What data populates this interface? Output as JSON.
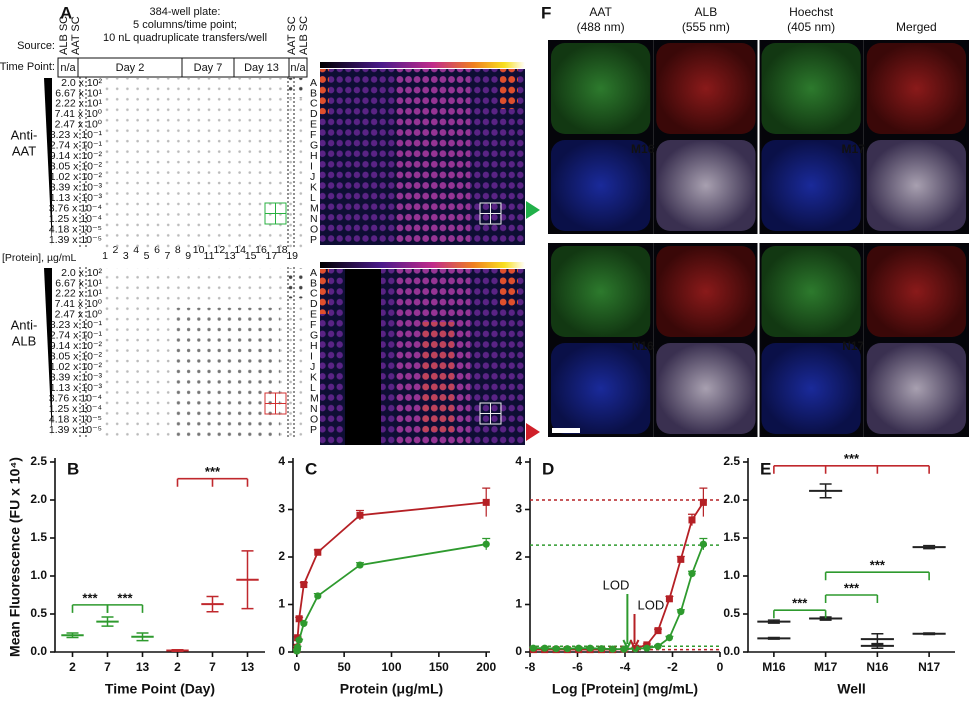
{
  "panel_a": {
    "label": "A",
    "plate_title": [
      "384-well plate:",
      "5 columns/time point;",
      "10 nL quadruplicate transfers/well"
    ],
    "source_label": "Source:",
    "source_left": [
      "ALB SC",
      "AAT SC"
    ],
    "source_right": [
      "AAT SC",
      "ALB SC"
    ],
    "time_label": "Time Point:",
    "time_points": [
      "n/a",
      "Day 2",
      "Day 7",
      "Day 13",
      "n/a"
    ],
    "protein_label": "[Protein], µg/mL",
    "columns": [
      "1",
      "2",
      "3",
      "4",
      "5",
      "6",
      "7",
      "8",
      "9",
      "10",
      "11",
      "12",
      "13",
      "14",
      "15",
      "16",
      "17",
      "18",
      "19"
    ],
    "concentrations": [
      "2.0 x 10²",
      "6.67 x 10¹",
      "2.22 x 10¹",
      "7.41 x 10⁰",
      "2.47 x 10⁰",
      "8.23 x 10⁻¹",
      "2.74 x 10⁻¹",
      "9.14 x 10⁻²",
      "3.05 x 10⁻²",
      "1.02 x 10⁻²",
      "3.39 x 10⁻³",
      "1.13 x 10⁻³",
      "3.76 x 10⁻⁴",
      "1.25 x 10⁻⁴",
      "4.18 x 10⁻⁵",
      "1.39 x 10⁻⁵"
    ],
    "rows": [
      "A",
      "B",
      "C",
      "D",
      "E",
      "F",
      "G",
      "H",
      "I",
      "J",
      "K",
      "L",
      "M",
      "N",
      "O",
      "P"
    ],
    "antibodies": [
      [
        "Anti-",
        "AAT"
      ],
      [
        "Anti-",
        "ALB"
      ]
    ]
  },
  "panel_f": {
    "label": "F",
    "channels": [
      [
        "AAT",
        "(488 nm)"
      ],
      [
        "ALB",
        "(555 nm)"
      ],
      [
        "Hoechst",
        "(405 nm)"
      ],
      [
        "Merged"
      ]
    ],
    "wells": [
      "M16",
      "M17",
      "N16",
      "N17"
    ]
  },
  "chart_data": [
    {
      "label": "B",
      "type": "dot",
      "ylabel": "Mean Fluorescence (FU x 10⁴)",
      "xlabel": "Time Point (Day)",
      "categories": [
        "2",
        "7",
        "13",
        "2",
        "7",
        "13"
      ],
      "series": [
        {
          "color": "#2e9a2e",
          "values": [
            0.22,
            0.4,
            0.2,
            null,
            null,
            null
          ],
          "errors": [
            0.03,
            0.06,
            0.05,
            null,
            null,
            null
          ]
        },
        {
          "color": "#c0282d",
          "values": [
            null,
            null,
            null,
            0.02,
            0.63,
            0.95
          ],
          "errors": [
            null,
            null,
            null,
            0.01,
            0.1,
            0.38
          ]
        }
      ],
      "ylim": [
        0,
        2.5
      ],
      "yticks": [
        {
          "value": 0,
          "label": "0.0"
        },
        {
          "value": 0.5,
          "label": "0.5"
        },
        {
          "value": 1,
          "label": "1.0"
        },
        {
          "value": 1.5,
          "label": "1.5"
        },
        {
          "value": 2,
          "label": "2.0"
        },
        {
          "value": 2.5,
          "label": "2.5"
        }
      ],
      "brackets": [
        {
          "text": "***",
          "color": "#2e9a2e",
          "from": 0,
          "to": [
            1
          ],
          "y": 0.62
        },
        {
          "text": "***",
          "color": "#2e9a2e",
          "from": 1,
          "to": [
            2
          ],
          "y": 0.62
        },
        {
          "text": "***",
          "color": "#c0282d",
          "from": 3,
          "to": [
            4,
            5
          ],
          "y": 2.28
        }
      ]
    },
    {
      "label": "C",
      "type": "line",
      "xlabel": "Protein (μg/mL)",
      "x": [
        200,
        66.7,
        22.2,
        7.41,
        2.47,
        0.823,
        0.274,
        0.0914
      ],
      "series": [
        {
          "color": "#b52025",
          "marker": "square",
          "values": [
            3.15,
            2.88,
            2.1,
            1.42,
            0.7,
            0.3,
            0.1,
            0.05
          ],
          "errors": [
            0.3,
            0.1,
            0.05,
            0.04,
            0.03,
            0.02,
            0.02,
            0.02
          ]
        },
        {
          "color": "#2e9a2e",
          "marker": "circle",
          "values": [
            2.27,
            1.83,
            1.18,
            0.6,
            0.25,
            0.1,
            0.04,
            0.02
          ],
          "errors": [
            0.12,
            0.05,
            0.05,
            0.03,
            0.02,
            0.02,
            0.02,
            0.02
          ]
        }
      ],
      "xlim": [
        -4,
        204
      ],
      "xticks": [
        0,
        50,
        100,
        150,
        200
      ],
      "ylim": [
        0,
        4
      ],
      "yticks": [
        0,
        1,
        2,
        3,
        4
      ]
    },
    {
      "label": "D",
      "type": "line",
      "xlabel": "Log [Protein] (mg/mL)",
      "x": [
        -0.7,
        -1.18,
        -1.65,
        -2.13,
        -2.61,
        -3.08,
        -3.56,
        -4.04,
        -4.52,
        -4.99,
        -5.47,
        -5.95,
        -6.43,
        -6.9,
        -7.38,
        -7.86
      ],
      "series": [
        {
          "color": "#b52025",
          "marker": "square",
          "values": [
            3.15,
            2.78,
            1.95,
            1.12,
            0.45,
            0.15,
            0.08,
            0.06,
            0.05,
            0.05,
            0.05,
            0.05,
            0.05,
            0.05,
            0.05,
            0.05
          ],
          "errors": [
            0.3,
            0.12,
            0.06,
            0.05,
            0.03,
            0.02,
            0.02,
            0.02,
            0.02,
            0.02,
            0.02,
            0.02,
            0.02,
            0.02,
            0.02,
            0.02
          ]
        },
        {
          "color": "#2e9a2e",
          "marker": "circle",
          "values": [
            2.27,
            1.65,
            0.85,
            0.3,
            0.12,
            0.08,
            0.07,
            0.06,
            0.06,
            0.07,
            0.08,
            0.08,
            0.07,
            0.07,
            0.08,
            0.08
          ],
          "errors": [
            0.12,
            0.05,
            0.04,
            0.03,
            0.02,
            0.02,
            0.02,
            0.02,
            0.02,
            0.02,
            0.02,
            0.02,
            0.02,
            0.02,
            0.02,
            0.02
          ]
        }
      ],
      "hlines": [
        {
          "value": 3.2,
          "color": "#b52025"
        },
        {
          "value": 2.25,
          "color": "#2e9a2e"
        },
        {
          "value": 0.12,
          "color": "#2e9a2e"
        },
        {
          "value": 0.05,
          "color": "#b52025"
        }
      ],
      "lods": [
        {
          "text": "LOD",
          "color": "#2e9a2e",
          "x": -3.9
        },
        {
          "text": "LOD",
          "color": "#b52025",
          "x": -3.6
        }
      ],
      "xlim": [
        -8,
        0
      ],
      "xticks": [
        -8,
        -6,
        -4,
        -2,
        0
      ],
      "ylim": [
        0,
        4
      ],
      "yticks": [
        0,
        1,
        2,
        3,
        4
      ]
    },
    {
      "label": "E",
      "type": "dot",
      "xlabel": "Well",
      "categories": [
        "M16",
        "M17",
        "N16",
        "N17"
      ],
      "series": [
        {
          "color": "#222222",
          "values": [
            0.4,
            2.12,
            0.17,
            1.38
          ],
          "errors": [
            0.02,
            0.09,
            0.07,
            0.02
          ]
        },
        {
          "color": "#222222",
          "values": [
            0.18,
            0.44,
            0.08,
            0.24
          ],
          "errors": [
            0.01,
            0.02,
            0.03,
            0.01
          ]
        }
      ],
      "ylim": [
        0,
        2.5
      ],
      "yticks": [
        {
          "value": 0,
          "label": "0.0"
        },
        {
          "value": 0.5,
          "label": "0.5"
        },
        {
          "value": 1,
          "label": "1.0"
        },
        {
          "value": 1.5,
          "label": "1.5"
        },
        {
          "value": 2,
          "label": "2.0"
        },
        {
          "value": 2.5,
          "label": "2.5"
        }
      ],
      "brackets": [
        {
          "text": "***",
          "color": "#c0282d",
          "from": 0,
          "to": [
            1,
            2,
            3
          ],
          "y": 2.45
        },
        {
          "text": "***",
          "color": "#2e9a2e",
          "from": 0,
          "to": [
            1
          ],
          "y": 0.55
        },
        {
          "text": "***",
          "color": "#2e9a2e",
          "from": 1,
          "to": [
            2
          ],
          "y": 0.75
        },
        {
          "text": "***",
          "color": "#2e9a2e",
          "from": 1,
          "to": [
            3
          ],
          "y": 1.05
        }
      ]
    }
  ]
}
